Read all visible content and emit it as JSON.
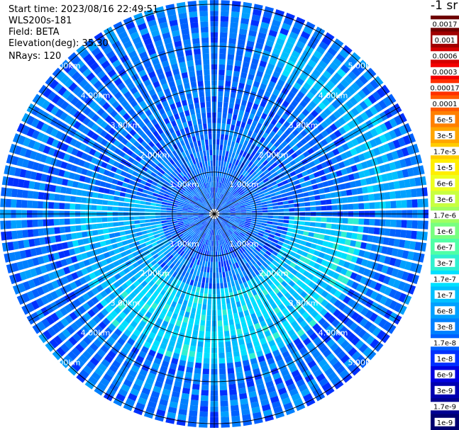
{
  "header": {
    "start_time": "Start time: 2023/08/16 22:49:51",
    "instrument": "WLS200s-181",
    "field": "Field: BETA",
    "elevation": "Elevation(deg): 35.30",
    "nrays": "NRays: 120"
  },
  "colorbar": {
    "title": "-1 sr",
    "levels": [
      {
        "label": "0.0017",
        "color": "#6e0000"
      },
      {
        "label": "0.001",
        "color": "#a00000"
      },
      {
        "label": "0.0006",
        "color": "#d40000"
      },
      {
        "label": "0.0003",
        "color": "#f40000"
      },
      {
        "label": "0.00017",
        "color": "#ff3000"
      },
      {
        "label": "0.0001",
        "color": "#ff5a00"
      },
      {
        "label": "6e-5",
        "color": "#ff8000"
      },
      {
        "label": "3e-5",
        "color": "#ffa600"
      },
      {
        "label": "1.7e-5",
        "color": "#ffcc00"
      },
      {
        "label": "1e-5",
        "color": "#ffee00"
      },
      {
        "label": "6e-6",
        "color": "#eeff20"
      },
      {
        "label": "3e-6",
        "color": "#c8ff40"
      },
      {
        "label": "1.7e-6",
        "color": "#a0ff60"
      },
      {
        "label": "1e-6",
        "color": "#78ff80"
      },
      {
        "label": "6e-7",
        "color": "#50ffa6"
      },
      {
        "label": "3e-7",
        "color": "#30f0d0"
      },
      {
        "label": "1.7e-7",
        "color": "#00e0ff"
      },
      {
        "label": "1e-7",
        "color": "#00c0ff"
      },
      {
        "label": "6e-8",
        "color": "#00a0ff"
      },
      {
        "label": "3e-8",
        "color": "#0080ff"
      },
      {
        "label": "1.7e-8",
        "color": "#0060ff"
      },
      {
        "label": "1e-8",
        "color": "#0030ff"
      },
      {
        "label": "6e-9",
        "color": "#0000e0"
      },
      {
        "label": "3e-9",
        "color": "#0000b0"
      },
      {
        "label": "1.7e-9",
        "color": "#000090"
      },
      {
        "label": "1e-9",
        "color": "#000070"
      }
    ]
  },
  "chart_data": {
    "type": "heatmap",
    "projection": "polar-ppi",
    "field": "BETA",
    "elevation_deg": 35.3,
    "nrays": 120,
    "range_rings_km": [
      1.0,
      2.0,
      3.0,
      4.0,
      5.0
    ],
    "ring_labels": [
      "1.00km",
      "2.00km",
      "3.00km",
      "4.00km",
      "5.00km"
    ],
    "spoke_angles_deg": [
      0,
      30,
      60,
      90,
      120,
      150,
      180,
      210,
      240,
      270,
      300,
      330
    ],
    "max_range_km": 5.1,
    "dominant_values": "mostly 1e-8 to 3e-7; inner ring 1-2 km slightly lower (~3e-8); broad band of ~1.7e-7 between 2 and 3.5 km to the south-east",
    "grid": true
  }
}
